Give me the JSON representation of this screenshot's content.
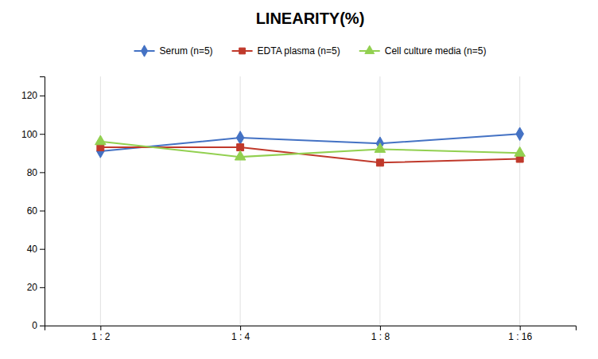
{
  "chart_data": {
    "type": "line",
    "title": "LINEARITY(%)",
    "categories": [
      "1 : 2",
      "1 : 4",
      "1 : 8",
      "1 : 16"
    ],
    "series": [
      {
        "name": "Serum (n=5)",
        "color": "#4472C4",
        "marker": "diamond",
        "line_style": "solid",
        "values": [
          91,
          98,
          95,
          100
        ]
      },
      {
        "name": "EDTA plasma (n=5)",
        "color": "#C0392B",
        "marker": "square",
        "line_style": "solid",
        "values": [
          93,
          93,
          85,
          87
        ]
      },
      {
        "name": "Cell culture media (n=5)",
        "color": "#92D050",
        "marker": "triangle",
        "line_style": "solid",
        "values": [
          96,
          88,
          92,
          90
        ]
      }
    ],
    "ylim": [
      0,
      130
    ],
    "yticks": [
      0,
      20,
      40,
      60,
      80,
      100,
      120
    ],
    "grid": "x",
    "legend": "top"
  }
}
